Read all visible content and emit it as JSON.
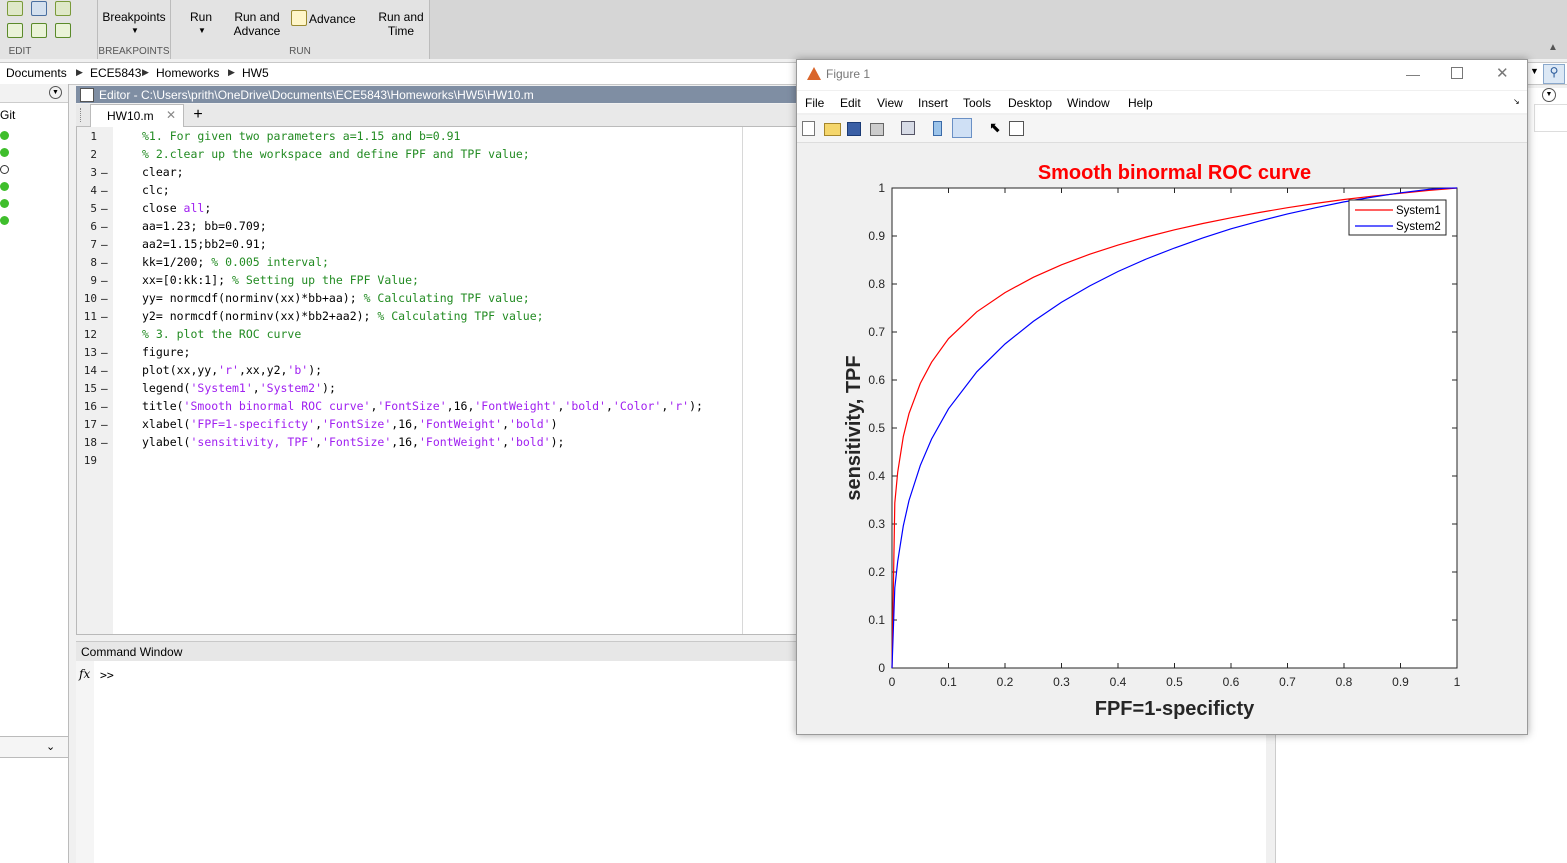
{
  "toolstrip": {
    "breakpoints_label": "Breakpoints",
    "run_label": "Run",
    "run_advance_label": "Run and\nAdvance",
    "advance_label": "Advance",
    "run_time_label": "Run and\nTime",
    "captions": {
      "edit": "EDIT",
      "breakpoints": "BREAKPOINTS",
      "run": "RUN"
    }
  },
  "address": {
    "crumbs": [
      "Documents",
      "ECE5843",
      "Homeworks",
      "HW5"
    ]
  },
  "left_panel": {
    "header": "Git"
  },
  "editor": {
    "title": "Editor - C:\\Users\\prith\\OneDrive\\Documents\\ECE5843\\Homeworks\\HW5\\HW10.m",
    "tab": "HW10.m",
    "add_tab": "+",
    "lines": [
      {
        "n": "1",
        "dash": "",
        "parts": [
          [
            "cm",
            "%1. For given two parameters a=1.15 and b=0.91"
          ]
        ]
      },
      {
        "n": "2",
        "dash": "",
        "parts": [
          [
            "cm",
            "% 2.clear up the workspace and define FPF and TPF value;"
          ]
        ]
      },
      {
        "n": "3",
        "dash": "—",
        "parts": [
          [
            "",
            "clear;"
          ]
        ]
      },
      {
        "n": "4",
        "dash": "—",
        "parts": [
          [
            "",
            "clc;"
          ]
        ]
      },
      {
        "n": "5",
        "dash": "—",
        "parts": [
          [
            "",
            "close "
          ],
          [
            "st",
            "all"
          ],
          [
            "",
            ";"
          ]
        ]
      },
      {
        "n": "6",
        "dash": "—",
        "parts": [
          [
            "",
            "aa=1.23; bb=0.709;"
          ]
        ]
      },
      {
        "n": "7",
        "dash": "—",
        "parts": [
          [
            "",
            "aa2=1.15;bb2=0.91;"
          ]
        ]
      },
      {
        "n": "8",
        "dash": "—",
        "parts": [
          [
            "",
            "kk=1/200; "
          ],
          [
            "cm",
            "% 0.005 interval;"
          ]
        ]
      },
      {
        "n": "9",
        "dash": "—",
        "parts": [
          [
            "",
            "xx=[0:kk:1]; "
          ],
          [
            "cm",
            "% Setting up the FPF Value;"
          ]
        ]
      },
      {
        "n": "10",
        "dash": "—",
        "parts": [
          [
            "",
            "yy= normcdf(norminv(xx)*bb+aa); "
          ],
          [
            "cm",
            "% Calculating TPF value;"
          ]
        ]
      },
      {
        "n": "11",
        "dash": "—",
        "parts": [
          [
            "",
            "y2= normcdf(norminv(xx)*bb2+aa2); "
          ],
          [
            "cm",
            "% Calculating TPF value;"
          ]
        ]
      },
      {
        "n": "12",
        "dash": "",
        "parts": [
          [
            "cm",
            "% 3. plot the ROC curve"
          ]
        ]
      },
      {
        "n": "13",
        "dash": "—",
        "parts": [
          [
            "",
            "figure;"
          ]
        ]
      },
      {
        "n": "14",
        "dash": "—",
        "parts": [
          [
            "",
            "plot(xx,yy,"
          ],
          [
            "st",
            "'r'"
          ],
          [
            "",
            ",xx,y2,"
          ],
          [
            "st",
            "'b'"
          ],
          [
            "",
            ");"
          ]
        ]
      },
      {
        "n": "15",
        "dash": "—",
        "parts": [
          [
            "",
            "legend("
          ],
          [
            "st",
            "'System1'"
          ],
          [
            "",
            ","
          ],
          [
            "st",
            "'System2'"
          ],
          [
            "",
            ");"
          ]
        ]
      },
      {
        "n": "16",
        "dash": "—",
        "parts": [
          [
            "",
            "title("
          ],
          [
            "st",
            "'Smooth binormal ROC curve'"
          ],
          [
            "",
            ","
          ],
          [
            "st",
            "'FontSize'"
          ],
          [
            "",
            ",16,"
          ],
          [
            "st",
            "'FontWeight'"
          ],
          [
            "",
            ","
          ],
          [
            "st",
            "'bold'"
          ],
          [
            "",
            ","
          ],
          [
            "st",
            "'Color'"
          ],
          [
            "",
            ","
          ],
          [
            "st",
            "'r'"
          ],
          [
            "",
            ");"
          ]
        ]
      },
      {
        "n": "17",
        "dash": "—",
        "parts": [
          [
            "",
            "xlabel("
          ],
          [
            "st",
            "'FPF=1-specificty'"
          ],
          [
            "",
            ","
          ],
          [
            "st",
            "'FontSize'"
          ],
          [
            "",
            ",16,"
          ],
          [
            "st",
            "'FontWeight'"
          ],
          [
            "",
            ","
          ],
          [
            "st",
            "'bold'"
          ],
          [
            "",
            ")"
          ]
        ]
      },
      {
        "n": "18",
        "dash": "—",
        "parts": [
          [
            "",
            "ylabel("
          ],
          [
            "st",
            "'sensitivity, TPF'"
          ],
          [
            "",
            ","
          ],
          [
            "st",
            "'FontSize'"
          ],
          [
            "",
            ",16,"
          ],
          [
            "st",
            "'FontWeight'"
          ],
          [
            "",
            ","
          ],
          [
            "st",
            "'bold'"
          ],
          [
            "",
            ");"
          ]
        ]
      },
      {
        "n": "19",
        "dash": "",
        "parts": []
      }
    ]
  },
  "command_window": {
    "title": "Command Window",
    "fx": "fx",
    "prompt": ">>"
  },
  "figure": {
    "title": "Figure 1",
    "menu": [
      "File",
      "Edit",
      "View",
      "Insert",
      "Tools",
      "Desktop",
      "Window",
      "Help"
    ]
  },
  "chart_data": {
    "type": "line",
    "title": "Smooth binormal ROC curve",
    "title_color": "#ff0000",
    "xlabel": "FPF=1-specificty",
    "ylabel": "sensitivity, TPF",
    "xlim": [
      0,
      1
    ],
    "ylim": [
      0,
      1
    ],
    "xticks": [
      "0",
      "0.1",
      "0.2",
      "0.3",
      "0.4",
      "0.5",
      "0.6",
      "0.7",
      "0.8",
      "0.9",
      "1"
    ],
    "yticks": [
      "0",
      "0.1",
      "0.2",
      "0.3",
      "0.4",
      "0.5",
      "0.6",
      "0.7",
      "0.8",
      "0.9",
      "1"
    ],
    "grid": false,
    "legend_position": "top-right",
    "x": [
      0,
      0.005,
      0.01,
      0.02,
      0.03,
      0.05,
      0.07,
      0.1,
      0.15,
      0.2,
      0.25,
      0.3,
      0.35,
      0.4,
      0.45,
      0.5,
      0.55,
      0.6,
      0.65,
      0.7,
      0.75,
      0.8,
      0.85,
      0.9,
      0.95,
      0.98,
      1
    ],
    "series": [
      {
        "name": "System1",
        "color": "#ff0000",
        "values": [
          0,
          0.344,
          0.408,
          0.482,
          0.53,
          0.593,
          0.637,
          0.686,
          0.742,
          0.782,
          0.814,
          0.84,
          0.862,
          0.881,
          0.898,
          0.913,
          0.926,
          0.938,
          0.949,
          0.959,
          0.968,
          0.976,
          0.983,
          0.989,
          0.995,
          0.998,
          1
        ]
      },
      {
        "name": "System2",
        "color": "#0000ff",
        "values": [
          0,
          0.167,
          0.222,
          0.296,
          0.349,
          0.422,
          0.477,
          0.54,
          0.617,
          0.675,
          0.722,
          0.762,
          0.796,
          0.826,
          0.852,
          0.875,
          0.896,
          0.915,
          0.931,
          0.946,
          0.959,
          0.971,
          0.981,
          0.99,
          0.997,
          0.9995,
          1
        ]
      }
    ]
  }
}
